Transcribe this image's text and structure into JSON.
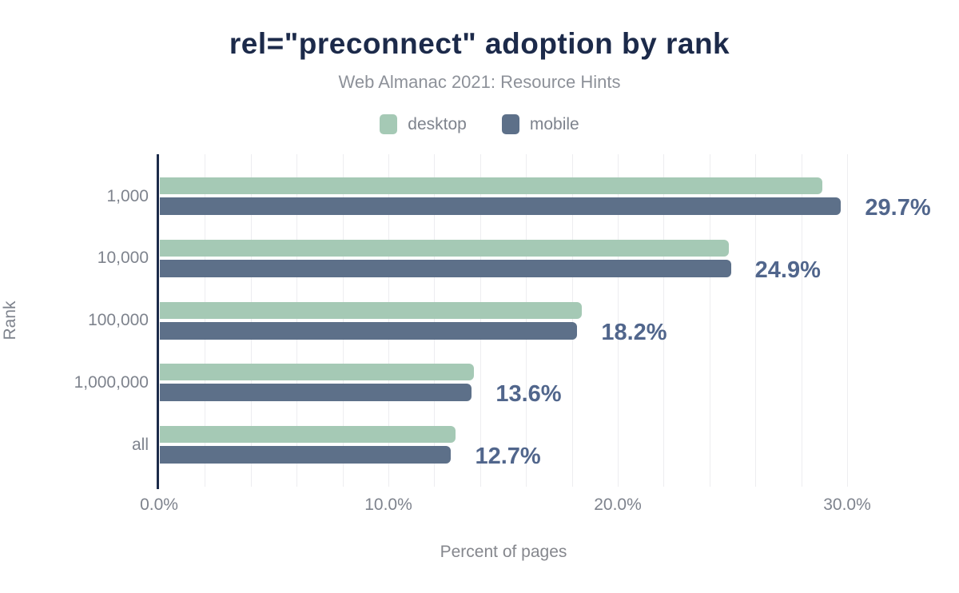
{
  "title": "rel=\"preconnect\" adoption by rank",
  "subtitle": "Web Almanac 2021: Resource Hints",
  "colors": {
    "desktop": "#a5c9b5",
    "mobile": "#5d7089",
    "title": "#1c2a4a",
    "value_label": "#51668c",
    "axis_line": "#1c2b4a",
    "gridline": "#ededf0",
    "muted_text": "#7e838d"
  },
  "legend": [
    {
      "label": "desktop",
      "color": "#a5c9b5"
    },
    {
      "label": "mobile",
      "color": "#5d7089"
    }
  ],
  "chart_data": {
    "type": "bar",
    "orientation": "horizontal",
    "title": "rel=\"preconnect\" adoption by rank",
    "subtitle": "Web Almanac 2021: Resource Hints",
    "categories": [
      "1,000",
      "10,000",
      "100,000",
      "1,000,000",
      "all"
    ],
    "series": [
      {
        "name": "desktop",
        "color": "#a5c9b5",
        "values": [
          28.9,
          24.8,
          18.4,
          13.7,
          12.9
        ]
      },
      {
        "name": "mobile",
        "color": "#5d7089",
        "values": [
          29.7,
          24.9,
          18.2,
          13.6,
          12.7
        ]
      }
    ],
    "bar_labels": [
      "29.7%",
      "24.9%",
      "18.2%",
      "13.6%",
      "12.7%"
    ],
    "bar_labels_series": "mobile",
    "xlabel": "Percent of pages",
    "ylabel": "Rank",
    "x_ticks": [
      "0.0%",
      "10.0%",
      "20.0%",
      "30.0%"
    ],
    "x_tick_values": [
      0,
      10,
      20,
      30
    ],
    "xlim": [
      0,
      32.5
    ],
    "gridline_step_pct": 2,
    "grid": true,
    "legend_position": "top"
  }
}
